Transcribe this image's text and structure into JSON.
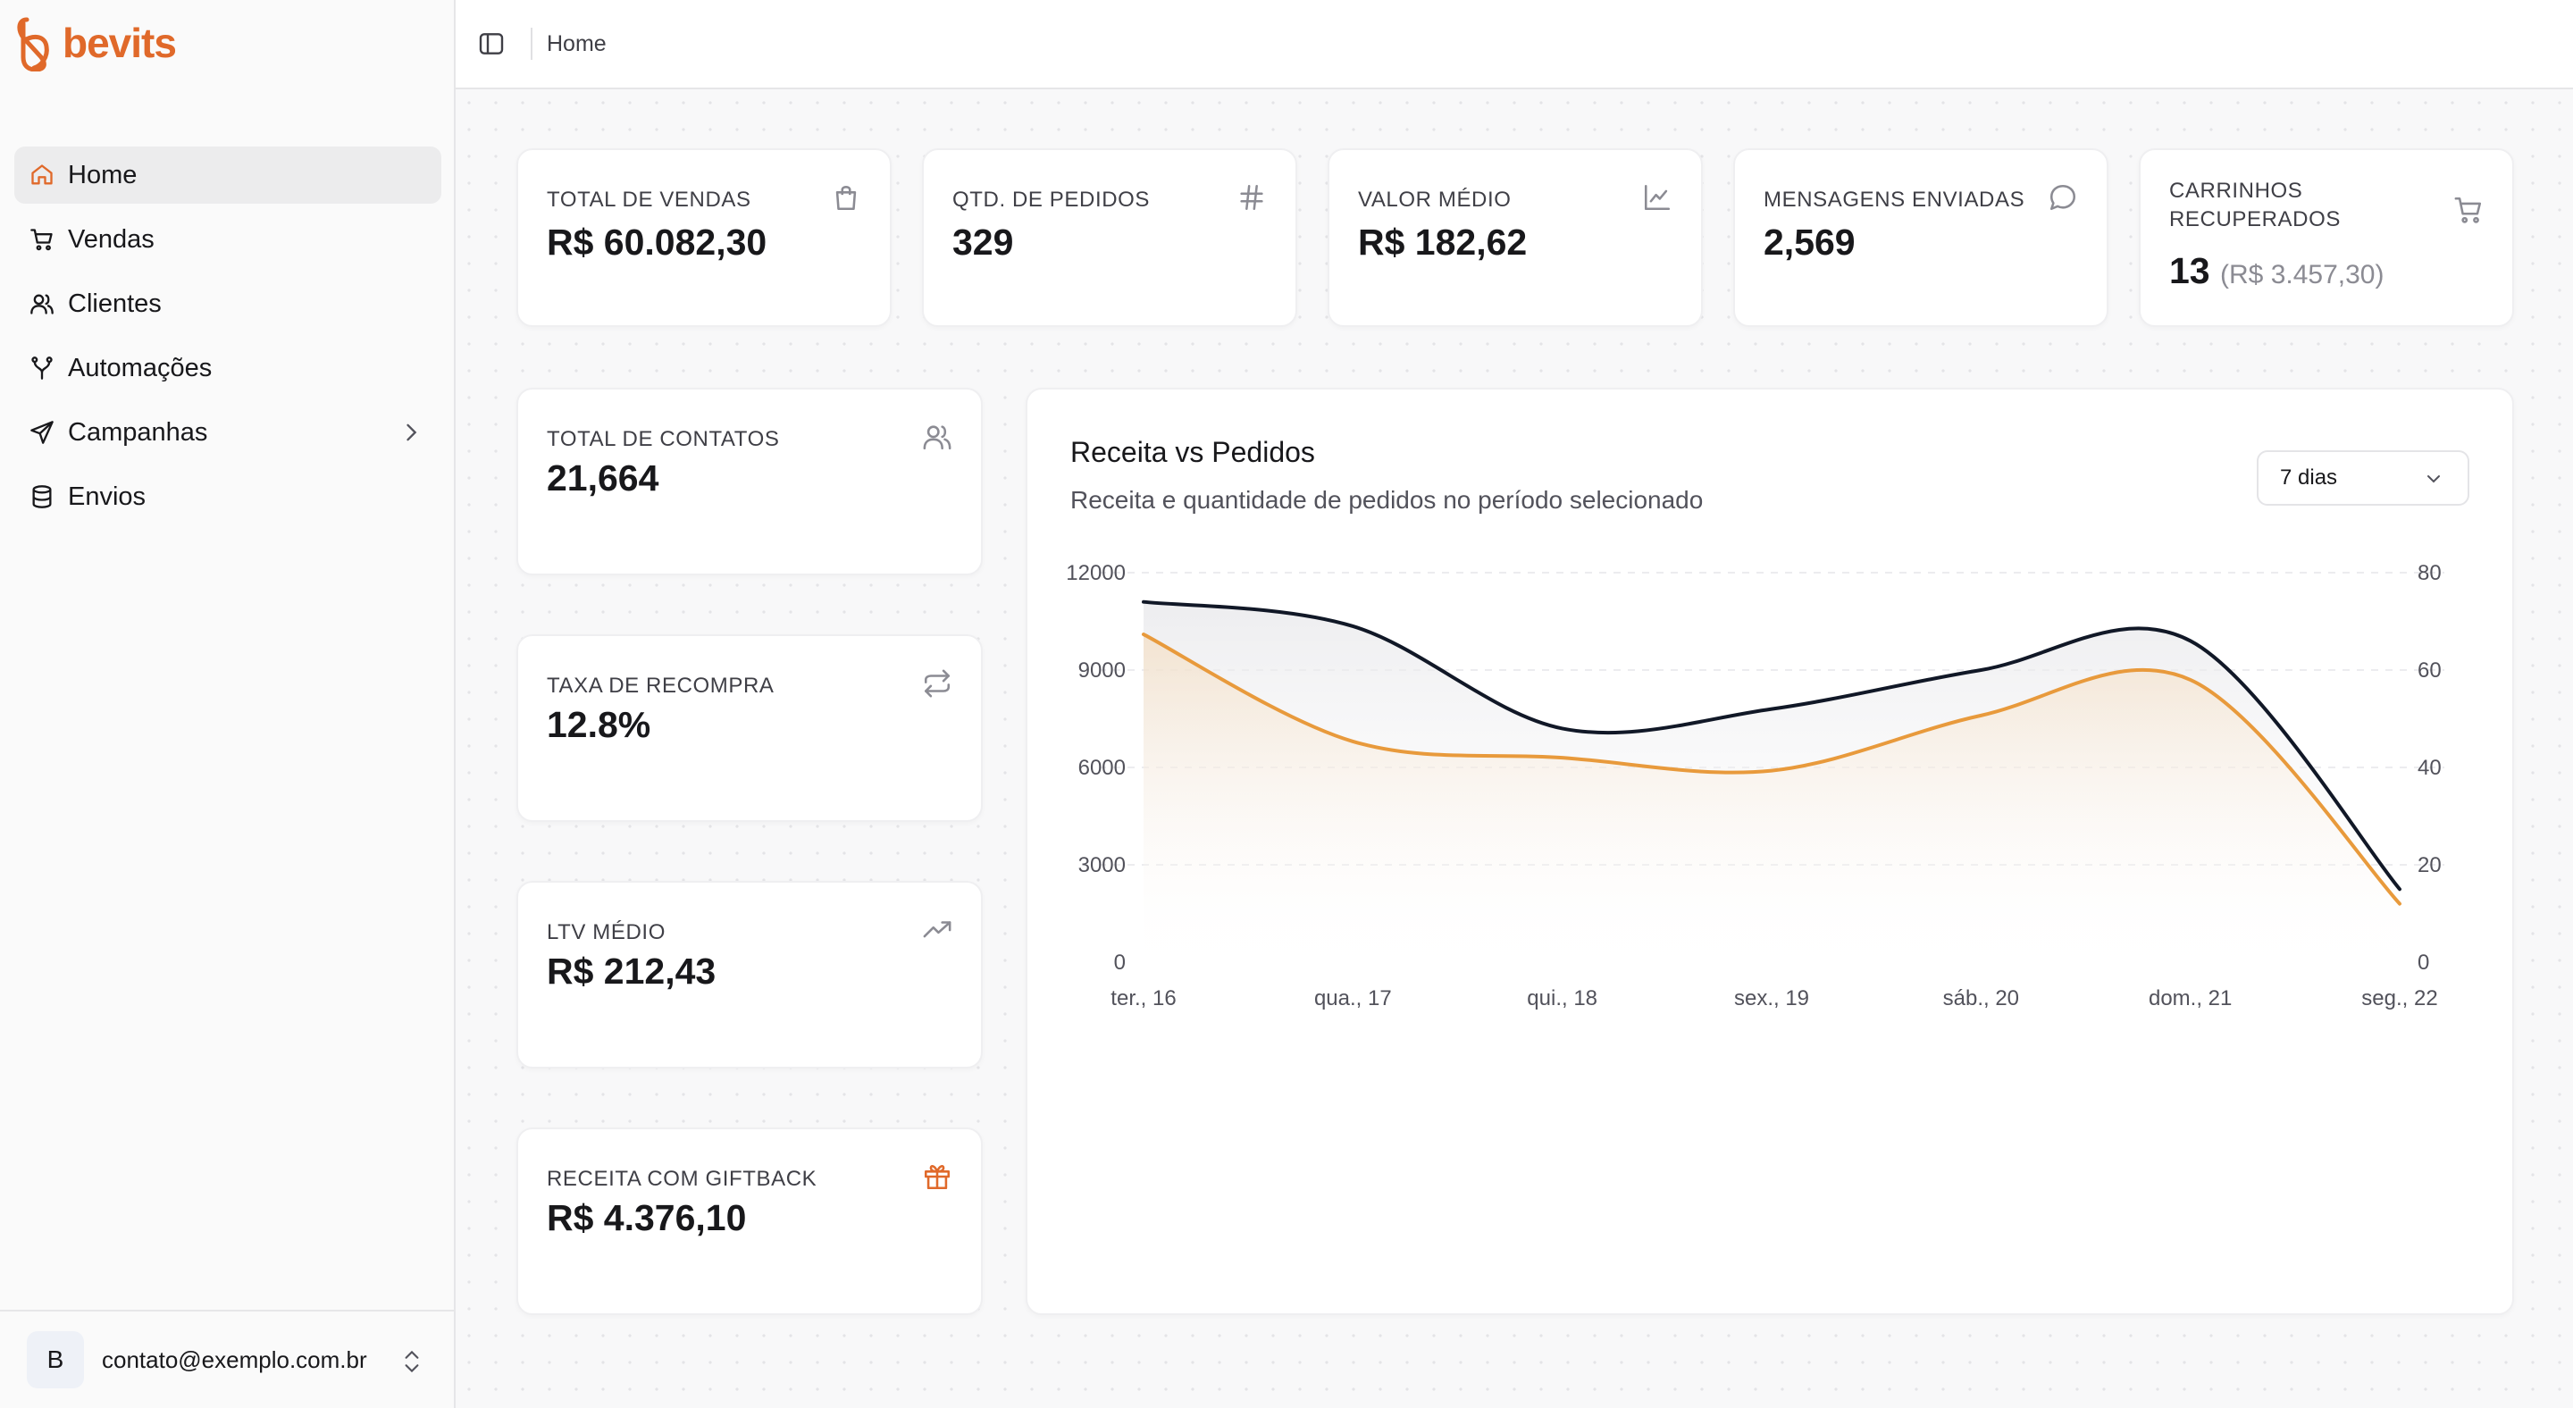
{
  "brand": {
    "name": "bevits",
    "color": "#e0692a"
  },
  "sidebar": {
    "items": [
      {
        "label": "Home",
        "icon": "home-icon",
        "active": true
      },
      {
        "label": "Vendas",
        "icon": "cart-icon"
      },
      {
        "label": "Clientes",
        "icon": "users-icon"
      },
      {
        "label": "Automações",
        "icon": "branch-icon"
      },
      {
        "label": "Campanhas",
        "icon": "send-icon",
        "has_submenu": true
      },
      {
        "label": "Envios",
        "icon": "database-icon"
      }
    ],
    "user": {
      "initial": "B",
      "email": "contato@exemplo.com.br"
    }
  },
  "topbar": {
    "breadcrumb": "Home"
  },
  "stats": [
    {
      "label": "TOTAL DE VENDAS",
      "value": "R$ 60.082,30",
      "icon": "shopping-bag-icon"
    },
    {
      "label": "QTD. DE PEDIDOS",
      "value": "329",
      "icon": "hash-icon"
    },
    {
      "label": "VALOR MÉDIO",
      "value": "R$ 182,62",
      "icon": "line-chart-icon"
    },
    {
      "label": "MENSAGENS ENVIADAS",
      "value": "2,569",
      "icon": "message-circle-icon"
    },
    {
      "label": "CARRINHOS RECUPERADOS",
      "label_lines": [
        "CARRINHOS",
        "RECUPERADOS"
      ],
      "value": "13",
      "sub": "(R$ 3.457,30)",
      "icon": "cart-icon"
    }
  ],
  "side_stats": [
    {
      "label": "TOTAL DE CONTATOS",
      "value": "21,664",
      "icon": "users-icon"
    },
    {
      "label": "TAXA DE RECOMPRA",
      "value": "12.8%",
      "icon": "repeat-icon"
    },
    {
      "label": "LTV MÉDIO",
      "value": "R$ 212,43",
      "icon": "trending-up-icon"
    },
    {
      "label": "RECEITA COM GIFTBACK",
      "value": "R$ 4.376,10",
      "icon": "gift-icon",
      "icon_color": "#e0692a"
    }
  ],
  "chart": {
    "title": "Receita vs Pedidos",
    "subtitle": "Receita e quantidade de pedidos no período selecionado",
    "range_select": "7 dias"
  },
  "chart_data": {
    "type": "area",
    "title": "Receita vs Pedidos",
    "categories": [
      "ter., 16",
      "qua., 17",
      "qui., 18",
      "sex., 19",
      "sáb., 20",
      "dom., 21",
      "seg., 22"
    ],
    "series": [
      {
        "axis": "left",
        "color": "#e89a3c",
        "values": [
          10100,
          6800,
          6300,
          5900,
          7600,
          8700,
          1800
        ]
      },
      {
        "axis": "right",
        "color": "#111827",
        "values": [
          74,
          69,
          48,
          52,
          60,
          66,
          15
        ]
      }
    ],
    "y_left": {
      "min": 0,
      "max": 12000,
      "ticks": [
        0,
        3000,
        6000,
        9000,
        12000
      ],
      "tick_labels": [
        "0",
        "3000",
        "6000",
        "9000",
        "12000"
      ]
    },
    "y_right": {
      "min": 0,
      "max": 80,
      "ticks": [
        0,
        20,
        40,
        60,
        80
      ]
    },
    "grid": "horizontal-dashed"
  }
}
